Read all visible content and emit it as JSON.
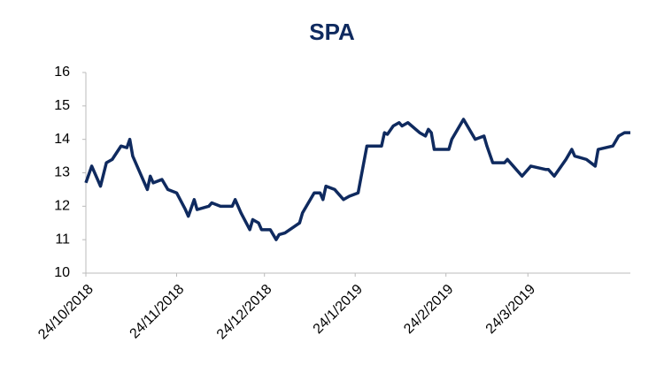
{
  "chart_data": {
    "type": "line",
    "title": "SPA",
    "x": [
      "2018-10-24",
      "2018-10-26",
      "2018-10-29",
      "2018-10-31",
      "2018-11-02",
      "2018-11-05",
      "2018-11-07",
      "2018-11-08",
      "2018-11-09",
      "2018-11-12",
      "2018-11-14",
      "2018-11-15",
      "2018-11-16",
      "2018-11-19",
      "2018-11-21",
      "2018-11-24",
      "2018-11-27",
      "2018-11-28",
      "2018-11-30",
      "2018-12-01",
      "2018-12-05",
      "2018-12-06",
      "2018-12-09",
      "2018-12-13",
      "2018-12-14",
      "2018-12-16",
      "2018-12-19",
      "2018-12-20",
      "2018-12-22",
      "2018-12-23",
      "2018-12-26",
      "2018-12-28",
      "2018-12-29",
      "2018-12-31",
      "2019-01-05",
      "2019-01-06",
      "2019-01-10",
      "2019-01-12",
      "2019-01-13",
      "2019-01-14",
      "2019-01-17",
      "2019-01-20",
      "2019-01-22",
      "2019-01-25",
      "2019-01-28",
      "2019-02-02",
      "2019-02-03",
      "2019-02-04",
      "2019-02-06",
      "2019-02-08",
      "2019-02-09",
      "2019-02-11",
      "2019-02-15",
      "2019-02-17",
      "2019-02-18",
      "2019-02-19",
      "2019-02-20",
      "2019-02-25",
      "2019-02-26",
      "2019-03-02",
      "2019-03-06",
      "2019-03-09",
      "2019-03-10",
      "2019-03-12",
      "2019-03-16",
      "2019-03-17",
      "2019-03-19",
      "2019-03-22",
      "2019-03-24",
      "2019-03-25",
      "2019-03-30",
      "2019-03-31",
      "2019-04-02",
      "2019-04-06",
      "2019-04-08",
      "2019-04-09",
      "2019-04-13",
      "2019-04-16",
      "2019-04-17",
      "2019-04-22",
      "2019-04-24",
      "2019-04-26",
      "2019-04-28"
    ],
    "series": [
      {
        "name": "SPA",
        "color": "#0f2a5f",
        "values": [
          12.7,
          13.2,
          12.6,
          13.3,
          13.4,
          13.8,
          13.75,
          14.0,
          13.5,
          12.9,
          12.5,
          12.9,
          12.7,
          12.8,
          12.5,
          12.4,
          11.9,
          11.7,
          12.2,
          11.9,
          12.0,
          12.1,
          12.0,
          12.0,
          12.2,
          11.8,
          11.3,
          11.6,
          11.5,
          11.3,
          11.3,
          11.0,
          11.15,
          11.2,
          11.5,
          11.8,
          12.4,
          12.4,
          12.2,
          12.6,
          12.5,
          12.2,
          12.3,
          12.4,
          13.8,
          13.8,
          14.2,
          14.15,
          14.4,
          14.5,
          14.4,
          14.5,
          14.2,
          14.1,
          14.3,
          14.2,
          13.7,
          13.7,
          14.0,
          14.6,
          14.0,
          14.1,
          13.8,
          13.3,
          13.3,
          13.4,
          13.2,
          12.9,
          13.1,
          13.2,
          13.1,
          13.1,
          12.9,
          13.4,
          13.7,
          13.5,
          13.4,
          13.2,
          13.7,
          13.8,
          14.1,
          14.2,
          14.2
        ]
      }
    ],
    "xlim": [
      "2018-10-24",
      "2019-04-28"
    ],
    "xticks": [
      {
        "value": "2018-10-24",
        "label": "24/10/2018"
      },
      {
        "value": "2018-11-24",
        "label": "24/11/2018"
      },
      {
        "value": "2018-12-24",
        "label": "24/12/2018"
      },
      {
        "value": "2019-01-24",
        "label": "24/1/2019"
      },
      {
        "value": "2019-02-24",
        "label": "24/2/2019"
      },
      {
        "value": "2019-03-24",
        "label": "24/3/2019"
      }
    ],
    "ylim": [
      10,
      16
    ],
    "yticks": [
      10,
      11,
      12,
      13,
      14,
      15,
      16
    ],
    "grid": false
  }
}
